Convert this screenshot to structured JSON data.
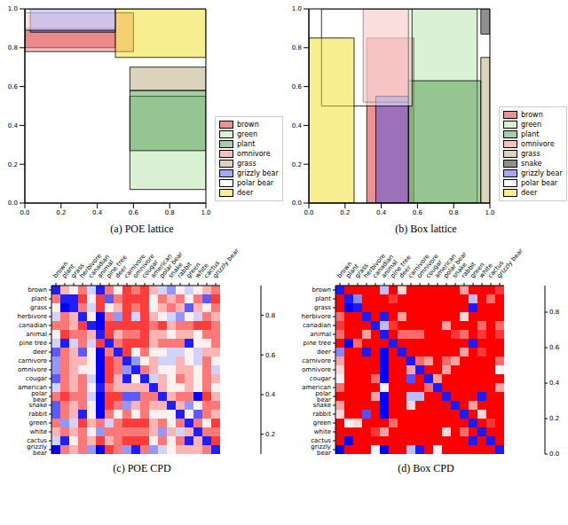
{
  "chart_data": [
    {
      "type": "box",
      "title": "(a) POE lattice",
      "xlim": [
        0,
        1
      ],
      "ylim": [
        0,
        1
      ],
      "xticks": [
        {
          "value": 0,
          "label": "0.0"
        },
        0.2,
        0.4,
        0.6,
        0.8,
        {
          "value": 1,
          "label": "1.0"
        }
      ],
      "yticks": [
        {
          "value": 0,
          "label": "0.0"
        },
        0.2,
        0.4,
        0.6,
        0.8,
        {
          "value": 1,
          "label": "1.0"
        }
      ],
      "legend": "right",
      "series": [
        {
          "name": "brown",
          "color": "#d62728",
          "x": [
            0,
            0.5
          ],
          "y": [
            0.8,
            0.9
          ]
        },
        {
          "name": "green",
          "color": "#b5e3a8",
          "x": [
            0.58,
            1
          ],
          "y": [
            0.07,
            0.55
          ]
        },
        {
          "name": "plant",
          "color": "#4f9a4f",
          "x": [
            0.58,
            1
          ],
          "y": [
            0.27,
            0.58
          ]
        },
        {
          "name": "omnivore",
          "color": "#f08080",
          "x": [
            0,
            0.6
          ],
          "y": [
            0.78,
            0.98
          ]
        },
        {
          "name": "grass",
          "color": "#b8a878",
          "x": [
            0.58,
            1
          ],
          "y": [
            0.58,
            0.7
          ]
        },
        {
          "name": "grizzly bear",
          "color": "#5050e0",
          "x": [
            0.03,
            0.5
          ],
          "y": [
            0.88,
            1
          ]
        },
        {
          "name": "polar bear",
          "color": "#ffffff",
          "x": [
            0,
            0.5
          ],
          "y": [
            0.89,
            1
          ]
        },
        {
          "name": "deer",
          "color": "#f0e020",
          "x": [
            0.5,
            1
          ],
          "y": [
            0.75,
            1
          ]
        }
      ]
    },
    {
      "type": "box",
      "title": "(b) Box lattice",
      "xlim": [
        0,
        1
      ],
      "ylim": [
        0,
        1
      ],
      "xticks": [
        {
          "value": 0,
          "label": "0.0"
        },
        0.2,
        0.4,
        0.6,
        0.8,
        {
          "value": 1,
          "label": "1.0"
        }
      ],
      "yticks": [
        {
          "value": 0,
          "label": "0.0"
        },
        0.2,
        0.4,
        0.6,
        0.8,
        {
          "value": 1,
          "label": "1.0"
        }
      ],
      "legend": "right",
      "series": [
        {
          "name": "brown",
          "color": "#d62728",
          "x": [
            0.32,
            0.58
          ],
          "y": [
            0,
            0.85
          ]
        },
        {
          "name": "green",
          "color": "#b5e3a8",
          "x": [
            0.55,
            0.93
          ],
          "y": [
            0,
            1
          ]
        },
        {
          "name": "plant",
          "color": "#4f9a4f",
          "x": [
            0.55,
            0.95
          ],
          "y": [
            0,
            0.63
          ]
        },
        {
          "name": "omnivore",
          "color": "#f08080",
          "x": [
            0.3,
            0.55
          ],
          "y": [
            0.52,
            1
          ]
        },
        {
          "name": "grass",
          "color": "#b8a878",
          "x": [
            0.95,
            1
          ],
          "y": [
            0,
            0.75
          ]
        },
        {
          "name": "snake",
          "color": "#202020",
          "x": [
            0.95,
            1
          ],
          "y": [
            0.87,
            1
          ]
        },
        {
          "name": "grizzly bear",
          "color": "#5050e0",
          "x": [
            0.37,
            0.55
          ],
          "y": [
            0,
            0.55
          ]
        },
        {
          "name": "polar bear",
          "color": "#ffffff",
          "x": [
            0.07,
            0.57
          ],
          "y": [
            0.5,
            1
          ]
        },
        {
          "name": "deer",
          "color": "#f0e020",
          "x": [
            0,
            0.25
          ],
          "y": [
            0,
            0.85
          ]
        }
      ]
    },
    {
      "type": "heatmap",
      "title": "(c) POE CPD",
      "categories": [
        "brown",
        "plant",
        "grass",
        "herbivore",
        "canadian",
        "animal",
        "pine tree",
        "deer",
        "carnivore",
        "omnivore",
        "cougar",
        "american",
        "polar bear",
        "snake",
        "rabbit",
        "green",
        "white",
        "cactus",
        "grizzly bear"
      ],
      "cells": [
        [
          0.9,
          0.4,
          0.5,
          0.3,
          0.6,
          0.9,
          0.3,
          0.5,
          0.2,
          0.3,
          0.2,
          0.4,
          0.6,
          0.7,
          0.5,
          0.6,
          0.5,
          0.4,
          0.3
        ],
        [
          0.3,
          0.9,
          0.9,
          0.2,
          0.5,
          0.2,
          0.8,
          0.3,
          0.2,
          0.2,
          0.2,
          0.5,
          0.3,
          0.4,
          0.3,
          0.5,
          0.3,
          0.8,
          0.2
        ],
        [
          0.5,
          0.95,
          0.9,
          0.3,
          0.6,
          0.2,
          0.5,
          0.4,
          0.2,
          0.3,
          0.2,
          0.5,
          0.4,
          0.3,
          0.4,
          0.8,
          0.4,
          0.5,
          0.3
        ],
        [
          0.6,
          0.3,
          0.4,
          0.9,
          0.5,
          0.95,
          0.3,
          0.7,
          0.2,
          0.6,
          0.2,
          0.4,
          0.5,
          0.6,
          0.7,
          0.5,
          0.6,
          0.3,
          0.4
        ],
        [
          0.3,
          0.3,
          0.4,
          0.2,
          0.9,
          0.95,
          0.2,
          0.2,
          0.2,
          0.2,
          0.2,
          0.3,
          0.2,
          0.4,
          0.3,
          0.3,
          0.2,
          0.2,
          0.3
        ],
        [
          0.5,
          0.2,
          0.3,
          0.3,
          0.4,
          0.9,
          0.2,
          0.4,
          0.3,
          0.3,
          0.2,
          0.4,
          0.4,
          0.5,
          0.4,
          0.4,
          0.5,
          0.3,
          0.3
        ],
        [
          0.6,
          0.9,
          0.6,
          0.3,
          0.6,
          0.2,
          0.9,
          0.3,
          0.2,
          0.2,
          0.2,
          0.4,
          0.3,
          0.3,
          0.3,
          0.9,
          0.5,
          0.5,
          0.3
        ],
        [
          0.8,
          0.3,
          0.4,
          0.8,
          0.5,
          0.95,
          0.3,
          0.9,
          0.2,
          0.5,
          0.3,
          0.5,
          0.5,
          0.6,
          0.6,
          0.5,
          0.6,
          0.4,
          0.4
        ],
        [
          0.7,
          0.3,
          0.4,
          0.4,
          0.5,
          0.95,
          0.2,
          0.3,
          0.9,
          0.7,
          0.5,
          0.4,
          0.6,
          0.6,
          0.4,
          0.5,
          0.6,
          0.3,
          0.5
        ],
        [
          0.7,
          0.3,
          0.4,
          0.5,
          0.5,
          0.95,
          0.2,
          0.3,
          0.7,
          0.9,
          0.3,
          0.4,
          0.5,
          0.5,
          0.4,
          0.4,
          0.5,
          0.3,
          0.6
        ],
        [
          0.8,
          0.3,
          0.4,
          0.3,
          0.6,
          0.95,
          0.2,
          0.4,
          0.9,
          0.5,
          0.9,
          0.6,
          0.4,
          0.5,
          0.3,
          0.4,
          0.5,
          0.3,
          0.4
        ],
        [
          0.6,
          0.3,
          0.4,
          0.3,
          0.5,
          0.9,
          0.3,
          0.4,
          0.4,
          0.4,
          0.4,
          0.9,
          0.4,
          0.5,
          0.5,
          0.4,
          0.5,
          0.3,
          0.5
        ],
        [
          0.3,
          0.2,
          0.3,
          0.3,
          0.6,
          0.95,
          0.2,
          0.2,
          0.8,
          0.8,
          0.3,
          0.3,
          0.9,
          0.4,
          0.3,
          0.3,
          0.95,
          0.2,
          0.4
        ],
        [
          0.8,
          0.3,
          0.4,
          0.3,
          0.5,
          0.95,
          0.2,
          0.3,
          0.7,
          0.4,
          0.3,
          0.4,
          0.4,
          0.9,
          0.4,
          0.7,
          0.5,
          0.3,
          0.3
        ],
        [
          0.8,
          0.3,
          0.4,
          0.9,
          0.5,
          0.95,
          0.3,
          0.5,
          0.3,
          0.5,
          0.3,
          0.5,
          0.5,
          0.5,
          0.9,
          0.5,
          0.8,
          0.3,
          0.4
        ],
        [
          0.3,
          0.7,
          0.6,
          0.2,
          0.4,
          0.3,
          0.6,
          0.3,
          0.2,
          0.2,
          0.2,
          0.4,
          0.3,
          0.5,
          0.3,
          0.9,
          0.3,
          0.5,
          0.2
        ],
        [
          0.4,
          0.3,
          0.4,
          0.3,
          0.5,
          0.7,
          0.3,
          0.3,
          0.3,
          0.3,
          0.3,
          0.4,
          0.7,
          0.4,
          0.6,
          0.4,
          0.9,
          0.3,
          0.3
        ],
        [
          0.6,
          0.9,
          0.5,
          0.3,
          0.4,
          0.2,
          0.4,
          0.3,
          0.2,
          0.2,
          0.2,
          0.5,
          0.3,
          0.5,
          0.3,
          0.9,
          0.4,
          0.9,
          0.2
        ],
        [
          0.95,
          0.3,
          0.4,
          0.3,
          0.7,
          0.95,
          0.2,
          0.3,
          0.7,
          0.9,
          0.3,
          0.7,
          0.6,
          0.5,
          0.4,
          0.4,
          0.4,
          0.3,
          0.9
        ]
      ],
      "colorbar": {
        "range": [
          0.1,
          0.95
        ],
        "ticks": [
          0.2,
          0.4,
          0.6,
          0.8
        ]
      }
    },
    {
      "type": "heatmap",
      "title": "(d) Box CPD",
      "categories": [
        "brown",
        "plant",
        "grass",
        "herbivore",
        "canadian",
        "animal",
        "pine tree",
        "deer",
        "carnivore",
        "omnivore",
        "cougar",
        "american",
        "polar bear",
        "snake",
        "rabbit",
        "green",
        "white",
        "cactus",
        "grizzly bear"
      ],
      "cells": [
        [
          0.9,
          0,
          0,
          0,
          0,
          0.6,
          0,
          0.4,
          0,
          0,
          0,
          0,
          0,
          0,
          0.3,
          0,
          0,
          0,
          0.1
        ],
        [
          0,
          0.9,
          0.7,
          0,
          0,
          0,
          0.1,
          0,
          0,
          0,
          0,
          0,
          0,
          0,
          0,
          0.6,
          0,
          0.2,
          0
        ],
        [
          0,
          0.95,
          0.9,
          0,
          0,
          0,
          0,
          0,
          0,
          0,
          0,
          0,
          0,
          0,
          0,
          0.9,
          0,
          0,
          0
        ],
        [
          0.2,
          0,
          0,
          0.9,
          0,
          0.9,
          0,
          0.3,
          0,
          0,
          0,
          0,
          0,
          0,
          0.4,
          0,
          0,
          0,
          0
        ],
        [
          0.1,
          0,
          0,
          0,
          0.9,
          0.6,
          0.1,
          0,
          0,
          0,
          0,
          0,
          0.3,
          0,
          0,
          0,
          0.2,
          0,
          0.2
        ],
        [
          0.2,
          0,
          0,
          0.3,
          0,
          0.9,
          0,
          0.2,
          0.2,
          0.2,
          0,
          0,
          0,
          0.1,
          0.2,
          0,
          0.1,
          0,
          0.1
        ],
        [
          0,
          0.95,
          0.2,
          0,
          0,
          0,
          0.9,
          0,
          0,
          0,
          0,
          0,
          0,
          0,
          0,
          0.9,
          0,
          0,
          0
        ],
        [
          0.7,
          0,
          0,
          0.9,
          0,
          0.95,
          0,
          0.9,
          0,
          0,
          0,
          0,
          0,
          0,
          0.3,
          0,
          0.1,
          0,
          0
        ],
        [
          0.3,
          0,
          0,
          0,
          0,
          0.95,
          0,
          0,
          0.9,
          0.2,
          0.3,
          0,
          0.2,
          0.3,
          0,
          0,
          0,
          0,
          0.2
        ],
        [
          0.4,
          0,
          0,
          0,
          0,
          0.95,
          0,
          0,
          0.3,
          0.9,
          0,
          0,
          0.3,
          0,
          0,
          0,
          0,
          0,
          0.5
        ],
        [
          0.5,
          0,
          0,
          0,
          0.2,
          0.95,
          0,
          0,
          0.8,
          0,
          0.9,
          0.3,
          0,
          0,
          0,
          0,
          0,
          0,
          0
        ],
        [
          0.2,
          0,
          0,
          0,
          0,
          0.5,
          0,
          0,
          0,
          0,
          0.2,
          0.9,
          0,
          0,
          0,
          0,
          0,
          0,
          0.3
        ],
        [
          0,
          0,
          0,
          0,
          0.3,
          0.95,
          0,
          0,
          0.6,
          0.6,
          0,
          0,
          0.9,
          0,
          0,
          0,
          0.9,
          0,
          0
        ],
        [
          0.3,
          0,
          0,
          0,
          0,
          0.95,
          0,
          0,
          0.4,
          0,
          0,
          0,
          0,
          0.9,
          0,
          0.3,
          0,
          0,
          0
        ],
        [
          0.4,
          0,
          0,
          0.8,
          0,
          0.95,
          0,
          0,
          0,
          0,
          0,
          0,
          0,
          0,
          0.9,
          0,
          0.4,
          0,
          0
        ],
        [
          0,
          0.5,
          0.4,
          0,
          0,
          0,
          0.2,
          0,
          0,
          0,
          0,
          0,
          0,
          0,
          0,
          0.9,
          0,
          0.1,
          0
        ],
        [
          0,
          0,
          0,
          0,
          0.1,
          0.3,
          0,
          0,
          0,
          0,
          0,
          0,
          0.4,
          0,
          0.2,
          0,
          0.9,
          0,
          0
        ],
        [
          0,
          0.95,
          0,
          0,
          0,
          0,
          0,
          0,
          0,
          0,
          0,
          0,
          0,
          0,
          0,
          0.9,
          0,
          0.9,
          0
        ],
        [
          0.95,
          0,
          0,
          0,
          0.5,
          0.95,
          0,
          0,
          0.6,
          0.9,
          0,
          0.5,
          0,
          0,
          0,
          0,
          0,
          0,
          0.9
        ]
      ],
      "colorbar": {
        "range": [
          0,
          0.95
        ],
        "ticks": [
          {
            "value": 0,
            "label": "0.0"
          },
          0.2,
          0.4,
          0.6,
          0.8
        ]
      }
    }
  ]
}
